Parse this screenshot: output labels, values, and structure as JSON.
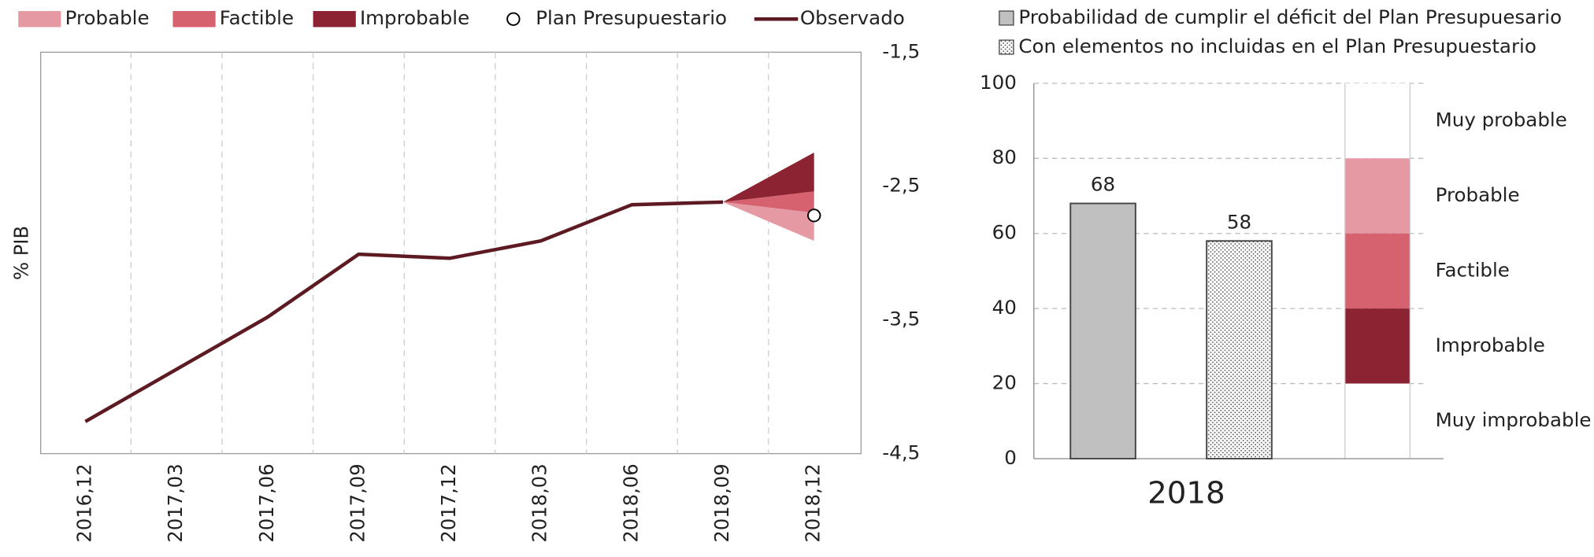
{
  "chart_data": [
    {
      "type": "line",
      "categories": [
        "2016,12",
        "2017,03",
        "2017,06",
        "2017,09",
        "2017,12",
        "2018,03",
        "2018,06",
        "2018,09",
        "2018,12"
      ],
      "ylabel": "% PIB",
      "ylim": [
        -4.5,
        -1.5
      ],
      "yticks": [
        {
          "value": -1.5,
          "label": "-1,5"
        },
        {
          "value": -2.5,
          "label": "-2,5"
        },
        {
          "value": -3.5,
          "label": "-3,5"
        },
        {
          "value": -4.5,
          "label": "-4,5"
        }
      ],
      "grid": true,
      "bands": [
        {
          "name": "Probable",
          "color": "#e59aa3",
          "low": [
            null,
            null,
            null,
            null,
            null,
            null,
            null,
            -2.62,
            -2.91
          ],
          "high": [
            null,
            null,
            null,
            null,
            null,
            null,
            null,
            -2.62,
            -2.7
          ]
        },
        {
          "name": "Factible",
          "color": "#d6616f",
          "low": [
            null,
            null,
            null,
            null,
            null,
            null,
            null,
            -2.62,
            -2.7
          ],
          "high": [
            null,
            null,
            null,
            null,
            null,
            null,
            null,
            -2.62,
            -2.54
          ]
        },
        {
          "name": "Improbable",
          "color": "#8b2333",
          "low": [
            null,
            null,
            null,
            null,
            null,
            null,
            null,
            -2.62,
            -2.54
          ],
          "high": [
            null,
            null,
            null,
            null,
            null,
            null,
            null,
            -2.62,
            -2.25
          ]
        }
      ],
      "series": [
        {
          "name": "Plan Presupuestario",
          "type": "marker",
          "color": "#ffffff",
          "values": [
            null,
            null,
            null,
            null,
            null,
            null,
            null,
            null,
            -2.72
          ]
        },
        {
          "name": "Observado",
          "type": "line",
          "color": "#5e1a22",
          "values": [
            -4.26,
            -3.87,
            -3.48,
            -3.01,
            -3.04,
            -2.91,
            -2.64,
            -2.62,
            null
          ]
        }
      ]
    },
    {
      "type": "bar",
      "categories": [
        "2018"
      ],
      "ylim": [
        0,
        100
      ],
      "yticks": [
        0,
        20,
        40,
        60,
        80,
        100
      ],
      "grid": true,
      "series": [
        {
          "name": "Probabilidad de cumplir el déficit del Plan Presupuesario",
          "color": "#c0c0c0",
          "values": [
            68
          ]
        },
        {
          "name": "Con elementos no incluidas en el Plan Presupuestario",
          "color": "#ffffff",
          "pattern": "dots",
          "values": [
            58
          ]
        }
      ],
      "scale": [
        {
          "name": "Muy probable",
          "low": 80,
          "high": 100,
          "color": "#ffffff"
        },
        {
          "name": "Probable",
          "low": 60,
          "high": 80,
          "color": "#e59aa3"
        },
        {
          "name": "Factible",
          "low": 40,
          "high": 60,
          "color": "#d6616f"
        },
        {
          "name": "Improbable",
          "low": 20,
          "high": 40,
          "color": "#8b2333"
        },
        {
          "name": "Muy improbable",
          "low": 0,
          "high": 20,
          "color": "#ffffff"
        }
      ]
    }
  ]
}
